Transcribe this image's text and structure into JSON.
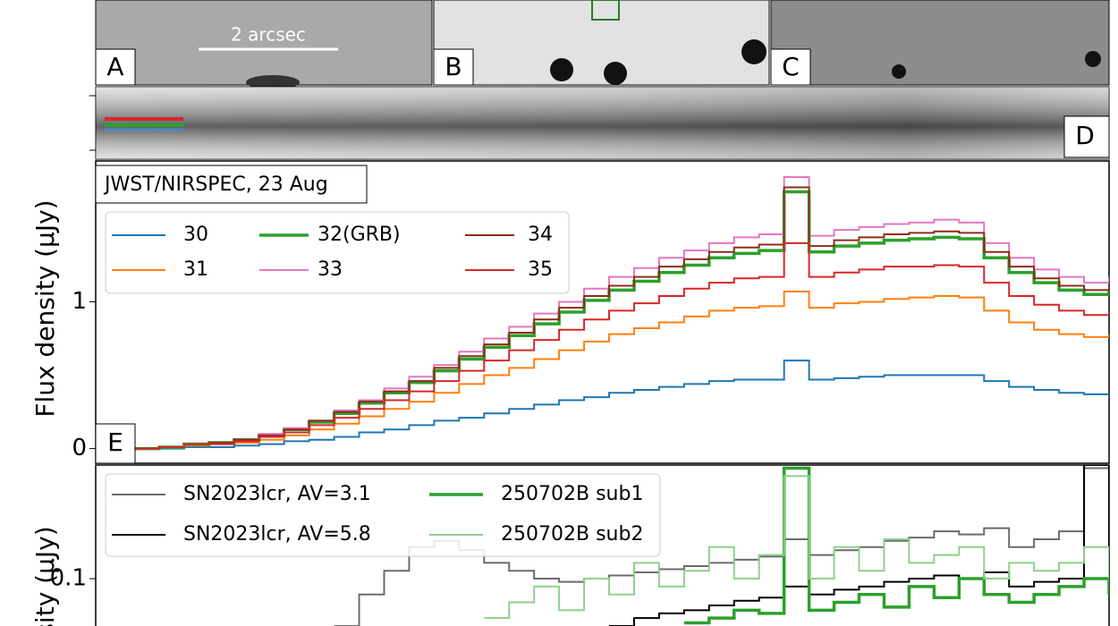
{
  "image_panels": {
    "scale_label": "2 arcsec",
    "labels": [
      "A",
      "B",
      "C",
      "D"
    ]
  },
  "chart_data": [
    {
      "type": "line",
      "annotation": "JWST/NIRSPEC, 23 Aug",
      "panel_label": "E",
      "ylabel": "Flux density (μJy)",
      "ylim": [
        -0.1,
        1.96
      ],
      "yticks": [
        0,
        1
      ],
      "series": [
        {
          "name": "30",
          "color": "#1f77b4",
          "values": [
            0,
            0.0,
            0.01,
            0.01,
            0.02,
            0.03,
            0.05,
            0.06,
            0.08,
            0.11,
            0.13,
            0.16,
            0.19,
            0.21,
            0.24,
            0.27,
            0.3,
            0.33,
            0.35,
            0.38,
            0.4,
            0.42,
            0.44,
            0.46,
            0.47,
            0.47,
            0.6,
            0.47,
            0.48,
            0.49,
            0.5,
            0.5,
            0.5,
            0.5,
            0.46,
            0.42,
            0.4,
            0.38,
            0.37,
            0.35
          ]
        },
        {
          "name": "31",
          "color": "#ff7f0e",
          "values": [
            0,
            0.01,
            0.02,
            0.03,
            0.04,
            0.06,
            0.09,
            0.13,
            0.17,
            0.22,
            0.27,
            0.32,
            0.38,
            0.44,
            0.5,
            0.55,
            0.61,
            0.67,
            0.73,
            0.78,
            0.82,
            0.86,
            0.9,
            0.94,
            0.96,
            0.97,
            1.07,
            0.96,
            0.99,
            1.0,
            1.02,
            1.03,
            1.04,
            1.03,
            0.94,
            0.86,
            0.81,
            0.78,
            0.76,
            0.78
          ]
        },
        {
          "name": "32(GRB)",
          "color": "#2ca02c",
          "width": 3.5,
          "values": [
            0,
            0.01,
            0.03,
            0.04,
            0.06,
            0.09,
            0.13,
            0.18,
            0.24,
            0.31,
            0.38,
            0.45,
            0.53,
            0.61,
            0.69,
            0.77,
            0.85,
            0.93,
            1.01,
            1.08,
            1.14,
            1.2,
            1.25,
            1.3,
            1.33,
            1.35,
            1.75,
            1.34,
            1.38,
            1.4,
            1.42,
            1.43,
            1.44,
            1.43,
            1.3,
            1.2,
            1.13,
            1.08,
            1.05,
            1.08
          ]
        },
        {
          "name": "33",
          "color": "#e377c2",
          "values": [
            0,
            0.01,
            0.03,
            0.04,
            0.06,
            0.1,
            0.14,
            0.19,
            0.26,
            0.33,
            0.41,
            0.49,
            0.57,
            0.66,
            0.75,
            0.83,
            0.92,
            1.0,
            1.09,
            1.17,
            1.23,
            1.3,
            1.35,
            1.4,
            1.44,
            1.46,
            1.85,
            1.45,
            1.49,
            1.51,
            1.53,
            1.54,
            1.56,
            1.54,
            1.4,
            1.3,
            1.22,
            1.17,
            1.13,
            1.17
          ]
        },
        {
          "name": "34",
          "color": "#8c2d19",
          "values": [
            0,
            0.01,
            0.03,
            0.04,
            0.06,
            0.09,
            0.13,
            0.19,
            0.25,
            0.32,
            0.39,
            0.46,
            0.55,
            0.63,
            0.71,
            0.79,
            0.88,
            0.96,
            1.04,
            1.11,
            1.17,
            1.24,
            1.29,
            1.34,
            1.37,
            1.39,
            1.78,
            1.38,
            1.42,
            1.44,
            1.46,
            1.47,
            1.48,
            1.47,
            1.34,
            1.24,
            1.16,
            1.11,
            1.08,
            1.11
          ]
        },
        {
          "name": "35",
          "color": "#d62728",
          "values": [
            0,
            0.01,
            0.03,
            0.03,
            0.05,
            0.08,
            0.11,
            0.16,
            0.21,
            0.27,
            0.33,
            0.39,
            0.46,
            0.53,
            0.6,
            0.67,
            0.74,
            0.81,
            0.88,
            0.94,
            0.99,
            1.04,
            1.09,
            1.13,
            1.16,
            1.17,
            1.4,
            1.17,
            1.2,
            1.22,
            1.24,
            1.24,
            1.25,
            1.24,
            1.13,
            1.04,
            0.98,
            0.94,
            0.91,
            0.94
          ]
        }
      ]
    },
    {
      "type": "line",
      "ylabel": "sity (μJy)",
      "ylim": [
        0.07,
        0.172
      ],
      "yticks": [
        0.1
      ],
      "series": [
        {
          "name": "SN2023lcr, AV=3.1",
          "color": "#6b6b6b",
          "values": [
            null,
            null,
            null,
            null,
            null,
            null,
            null,
            null,
            0.07,
            0.09,
            0.105,
            0.12,
            0.124,
            0.118,
            0.11,
            0.105,
            0.1,
            0.098,
            0.1,
            0.102,
            0.104,
            0.106,
            0.108,
            0.11,
            0.112,
            0.114,
            0.125,
            0.115,
            0.118,
            0.12,
            0.124,
            0.126,
            0.13,
            0.128,
            0.132,
            0.12,
            0.125,
            0.13,
            0.17,
            0.13
          ]
        },
        {
          "name": "SN2023lcr, AV=5.8",
          "color": "#000000",
          "values": [
            null,
            null,
            null,
            null,
            null,
            null,
            null,
            null,
            null,
            null,
            null,
            null,
            null,
            null,
            null,
            null,
            null,
            null,
            null,
            0.07,
            0.075,
            0.078,
            0.08,
            0.083,
            0.086,
            0.088,
            0.095,
            0.09,
            0.093,
            0.095,
            0.098,
            0.1,
            0.102,
            0.1,
            0.104,
            0.095,
            0.098,
            0.1,
            0.172,
            0.1
          ]
        },
        {
          "name": "250702B sub1",
          "color": "#2ca02c",
          "width": 3.5,
          "values": [
            null,
            null,
            null,
            null,
            null,
            null,
            null,
            null,
            null,
            null,
            null,
            null,
            null,
            null,
            null,
            null,
            null,
            null,
            null,
            null,
            null,
            null,
            0.072,
            0.075,
            0.08,
            0.078,
            0.17,
            0.08,
            0.085,
            0.09,
            0.082,
            0.095,
            0.088,
            0.1,
            0.09,
            0.085,
            0.09,
            0.095,
            0.1,
            0.09
          ]
        },
        {
          "name": "250702B sub2",
          "color": "#8fd18a",
          "values": [
            null,
            null,
            null,
            null,
            null,
            null,
            null,
            null,
            null,
            null,
            null,
            null,
            null,
            null,
            0.075,
            0.085,
            0.095,
            0.08,
            0.1,
            0.09,
            0.11,
            0.095,
            0.105,
            0.12,
            0.1,
            0.115,
            0.165,
            0.1,
            0.12,
            0.105,
            0.125,
            0.11,
            0.115,
            0.12,
            0.1,
            0.11,
            0.105,
            0.11,
            0.12,
            0.1
          ]
        }
      ]
    }
  ]
}
